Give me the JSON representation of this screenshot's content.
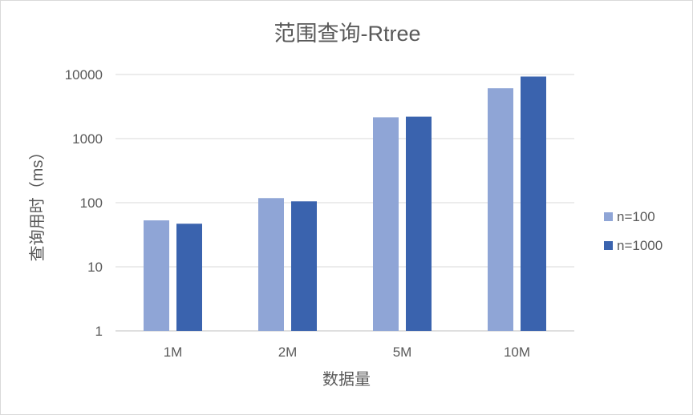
{
  "chart_data": {
    "type": "bar",
    "title": "范围查询-Rtree",
    "xlabel": "数据量",
    "ylabel": "查询用时（ms）",
    "y_scale": "log",
    "ylim": [
      1,
      10000
    ],
    "yticks": [
      "1",
      "10",
      "100",
      "1000",
      "10000"
    ],
    "categories": [
      "1M",
      "2M",
      "5M",
      "10M"
    ],
    "series": [
      {
        "name": "n=100",
        "color": "#8FA5D6",
        "values": [
          53,
          118,
          2150,
          6100
        ]
      },
      {
        "name": "n=1000",
        "color": "#3A63AE",
        "values": [
          47,
          105,
          2200,
          9300
        ]
      }
    ],
    "grid": true,
    "legend_position": "right"
  }
}
